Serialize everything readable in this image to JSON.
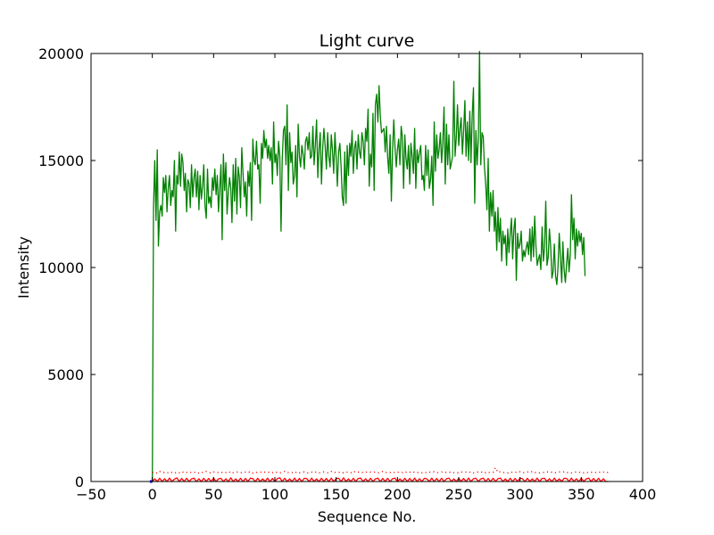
{
  "chart_data": {
    "type": "line",
    "title": "Light curve",
    "xlabel": "Sequence No.",
    "ylabel": "Intensity",
    "xlim": [
      -50,
      400
    ],
    "ylim": [
      0,
      20000
    ],
    "xticks": [
      -50,
      0,
      50,
      100,
      150,
      200,
      250,
      300,
      350,
      400
    ],
    "yticks": [
      0,
      5000,
      10000,
      15000,
      20000
    ],
    "xtick_labels": [
      "−50",
      "0",
      "50",
      "100",
      "150",
      "200",
      "250",
      "300",
      "350",
      "400"
    ],
    "ytick_labels": [
      "0",
      "5000",
      "10000",
      "15000",
      "20000"
    ],
    "grid": false,
    "legend": "none",
    "series": [
      {
        "style": "solid",
        "color": "#008000",
        "x_start": 0,
        "x_step": 1,
        "values": [
          50,
          12800,
          15000,
          12200,
          15500,
          11000,
          12600,
          12900,
          12400,
          14200,
          13500,
          14300,
          12600,
          13700,
          14300,
          12900,
          13600,
          13300,
          15000,
          11700,
          14300,
          13900,
          15400,
          13800,
          15300,
          14900,
          13600,
          14400,
          12600,
          14100,
          13900,
          12800,
          14800,
          13300,
          14200,
          14600,
          13300,
          14500,
          12700,
          14300,
          13200,
          13800,
          14800,
          12900,
          12300,
          14600,
          13000,
          13300,
          12800,
          14200,
          13600,
          14600,
          13400,
          14300,
          12600,
          13700,
          14800,
          11300,
          15300,
          13600,
          14900,
          12500,
          13500,
          14200,
          13700,
          12100,
          14800,
          13100,
          15100,
          12500,
          14700,
          14200,
          12800,
          15600,
          14400,
          13300,
          14000,
          12400,
          14500,
          13800,
          14900,
          12200,
          16000,
          15000,
          14800,
          15900,
          14600,
          14800,
          13000,
          15800,
          15100,
          16400,
          15600,
          16000,
          15100,
          15700,
          15000,
          15600,
          13900,
          16800,
          14900,
          15300,
          14300,
          15900,
          15200,
          11700,
          15000,
          16400,
          16600,
          14800,
          17600,
          13600,
          16300,
          14900,
          15400,
          13900,
          14300,
          15700,
          13300,
          16700,
          15200,
          14700,
          15700,
          15300,
          14600,
          15900,
          16100,
          15500,
          16300,
          15100,
          15200,
          16600,
          14800,
          15700,
          16900,
          14200,
          15500,
          16300,
          13900,
          15600,
          16500,
          15700,
          14600,
          16300,
          15200,
          14700,
          16200,
          15500,
          14400,
          16300,
          15100,
          13800,
          15400,
          15800,
          14700,
          13300,
          12900,
          15400,
          13000,
          15700,
          14300,
          15800,
          15200,
          16400,
          14400,
          15600,
          15900,
          14600,
          16200,
          15400,
          15100,
          16300,
          15900,
          14800,
          16500,
          15900,
          17400,
          13800,
          15300,
          14700,
          17200,
          13600,
          17600,
          18100,
          16800,
          18500,
          17100,
          16300,
          16400,
          16500,
          15400,
          16600,
          15200,
          14400,
          16200,
          13100,
          15400,
          16900,
          15600,
          14700,
          15500,
          16000,
          14800,
          16600,
          16100,
          13700,
          16200,
          15100,
          14600,
          15700,
          13900,
          15800,
          15200,
          14400,
          16500,
          13700,
          15500,
          14900,
          15400,
          15700,
          14100,
          14300,
          13600,
          15700,
          14300,
          15500,
          13700,
          14100,
          15200,
          12900,
          16800,
          14500,
          16200,
          15100,
          15500,
          16300,
          14900,
          15800,
          17500,
          13900,
          16700,
          14800,
          16200,
          14600,
          14900,
          15200,
          18700,
          15200,
          16100,
          17600,
          15700,
          16500,
          17000,
          15300,
          16400,
          17800,
          15200,
          16800,
          15000,
          17300,
          14900,
          17100,
          18400,
          13000,
          16400,
          14800,
          16100,
          20100,
          14800,
          16300,
          16100,
          14700,
          13900,
          12700,
          15100,
          11700,
          13500,
          12400,
          13600,
          11700,
          12600,
          10800,
          12800,
          11200,
          12300,
          10300,
          11700,
          11100,
          11500,
          10100,
          11800,
          10700,
          11600,
          12300,
          10400,
          11800,
          12300,
          9400,
          11600,
          10900,
          11100,
          11700,
          10300,
          10800,
          10500,
          10900,
          11200,
          10600,
          11800,
          10300,
          11900,
          10500,
          12400,
          11000,
          10100,
          10400,
          10600,
          9900,
          11900,
          10300,
          10900,
          13100,
          10100,
          10500,
          11800,
          11000,
          9500,
          9800,
          11100,
          9600,
          9200,
          10000,
          11600,
          10500,
          9300,
          11200,
          9900,
          9300,
          10200,
          10900,
          9800,
          10600,
          13400,
          11300,
          12300,
          10400,
          11800,
          11000,
          11700,
          11200,
          11600,
          10600,
          11400,
          9600
        ]
      },
      {
        "style": "dotted",
        "color": "#ff0000",
        "x_start": 0,
        "x_step": 2,
        "values": [
          420,
          450,
          380,
          470,
          410,
          430,
          390,
          460,
          420,
          380,
          450,
          410,
          470,
          400,
          430,
          390,
          440,
          420,
          460,
          380,
          430,
          410,
          470,
          420,
          390,
          450,
          410,
          430,
          400,
          460,
          420,
          390,
          480,
          410,
          430,
          450,
          420,
          400,
          440,
          410,
          470,
          390,
          430,
          420,
          450,
          400,
          440,
          410,
          460,
          420,
          390,
          450,
          410,
          430,
          470,
          400,
          440,
          420,
          380,
          460,
          410,
          430,
          450,
          390,
          420,
          440,
          410,
          460,
          400,
          430,
          450,
          420,
          390,
          470,
          410,
          440,
          420,
          460,
          400,
          430,
          450,
          410,
          490,
          420,
          440,
          400,
          430,
          460,
          410,
          440,
          420,
          450,
          400,
          430,
          470,
          410,
          440,
          420,
          460,
          400,
          430,
          450,
          420,
          470,
          410,
          440,
          400,
          460,
          420,
          430,
          410,
          450,
          400,
          440,
          420,
          460,
          410,
          430,
          450,
          400,
          440,
          420,
          460,
          410,
          430,
          400,
          450,
          420,
          440,
          410,
          460,
          400,
          430,
          450,
          420,
          480,
          410,
          440,
          400,
          430,
          650,
          420,
          460,
          410,
          430,
          400,
          450,
          420,
          440,
          410,
          460,
          400,
          430,
          450,
          420,
          470,
          410,
          440,
          400,
          430,
          420,
          460,
          410,
          440,
          400,
          430,
          450,
          420,
          460,
          410,
          440,
          400,
          430,
          450,
          420,
          460,
          410,
          440,
          400,
          430,
          450,
          420,
          460,
          410,
          440,
          400,
          430
        ]
      },
      {
        "style": "solid",
        "color": "#ff0000",
        "x_start": 0,
        "x_step": 2,
        "values": [
          0,
          120,
          0,
          150,
          0,
          130,
          0,
          160,
          0,
          110,
          170,
          0,
          140,
          0,
          150,
          0,
          120,
          160,
          0,
          130,
          0,
          150,
          0,
          140,
          0,
          160,
          0,
          120,
          150,
          0,
          130,
          0,
          170,
          0,
          120,
          0,
          150,
          0,
          140,
          0,
          160,
          130,
          0,
          150,
          0,
          120,
          0,
          160,
          0,
          140,
          0,
          130,
          170,
          0,
          150,
          0,
          120,
          0,
          160,
          0,
          140,
          0,
          150,
          130,
          0,
          160,
          0,
          120,
          0,
          150,
          0,
          140,
          0,
          160,
          0,
          130,
          150,
          0,
          170,
          0,
          120,
          0,
          150,
          0,
          140,
          160,
          0,
          130,
          0,
          150,
          0,
          120,
          160,
          0,
          140,
          0,
          150,
          0,
          130,
          160,
          0,
          120,
          0,
          150,
          0,
          140,
          0,
          160,
          0,
          130,
          0,
          150,
          120,
          0,
          160,
          0,
          140,
          0,
          150,
          0,
          130,
          160,
          0,
          120,
          0,
          150,
          0,
          140,
          0,
          160,
          0,
          130,
          150,
          0,
          120,
          160,
          0,
          140,
          0,
          150,
          0,
          130,
          160,
          0,
          120,
          0,
          150,
          0,
          140,
          0,
          160,
          130,
          0,
          150,
          0,
          120,
          0,
          160,
          0,
          140,
          150,
          0,
          130,
          0,
          160,
          0,
          120,
          0,
          150,
          140,
          0,
          160,
          0,
          130,
          0,
          150,
          0,
          120,
          160,
          0,
          140,
          0,
          150,
          0,
          130,
          0,
          0
        ]
      },
      {
        "style": "solid",
        "color": "#0000ff",
        "x": [
          -2,
          0
        ],
        "values": [
          0,
          0
        ]
      }
    ]
  }
}
